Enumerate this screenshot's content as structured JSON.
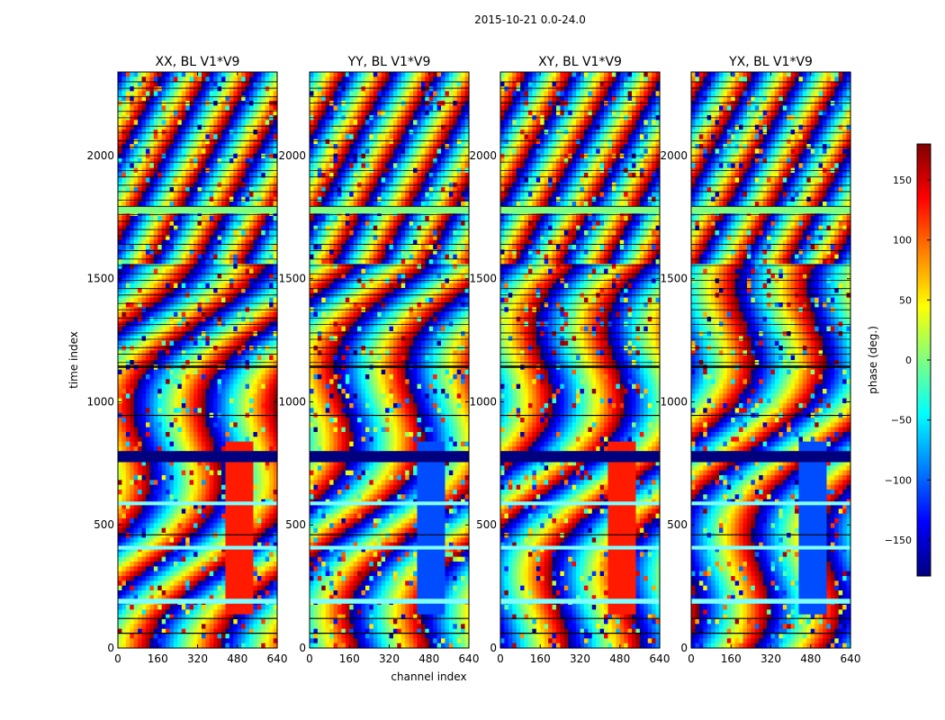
{
  "figure_title": "2015-10-21 0.0-24.0",
  "colorbar": {
    "label": "phase (deg.)",
    "ticks": [
      -150,
      -100,
      -50,
      0,
      50,
      100,
      150
    ],
    "range": [
      -180,
      180
    ],
    "colormap": "jet"
  },
  "chart_data": [
    {
      "type": "heatmap",
      "title": "XX, BL V1*V9",
      "xlabel": "",
      "ylabel": "time index",
      "xlim": [
        0,
        640
      ],
      "ylim": [
        0,
        2340
      ],
      "xticks": [
        0,
        160,
        320,
        480,
        640
      ],
      "yticks": [
        0,
        500,
        1000,
        1500,
        2000
      ],
      "value_unit": "phase (deg.)",
      "zlim": [
        -180,
        180
      ]
    },
    {
      "type": "heatmap",
      "title": "YY, BL V1*V9",
      "xlabel": "channel index",
      "ylabel": "",
      "xlim": [
        0,
        640
      ],
      "ylim": [
        0,
        2340
      ],
      "xticks": [
        0,
        160,
        320,
        480,
        640
      ],
      "yticks": [
        0,
        500,
        1000,
        1500,
        2000
      ],
      "value_unit": "phase (deg.)",
      "zlim": [
        -180,
        180
      ]
    },
    {
      "type": "heatmap",
      "title": "XY, BL V1*V9",
      "xlabel": "",
      "ylabel": "",
      "xlim": [
        0,
        640
      ],
      "ylim": [
        0,
        2340
      ],
      "xticks": [
        0,
        160,
        320,
        480,
        640
      ],
      "yticks": [
        0,
        500,
        1000,
        1500,
        2000
      ],
      "value_unit": "phase (deg.)",
      "zlim": [
        -180,
        180
      ]
    },
    {
      "type": "heatmap",
      "title": "YX, BL V1*V9",
      "xlabel": "",
      "ylabel": "",
      "xlim": [
        0,
        640
      ],
      "ylim": [
        0,
        2340
      ],
      "xticks": [
        0,
        160,
        320,
        480,
        640
      ],
      "yticks": [
        0,
        500,
        1000,
        1500,
        2000
      ],
      "value_unit": "phase (deg.)",
      "zlim": [
        -180,
        180
      ]
    }
  ]
}
